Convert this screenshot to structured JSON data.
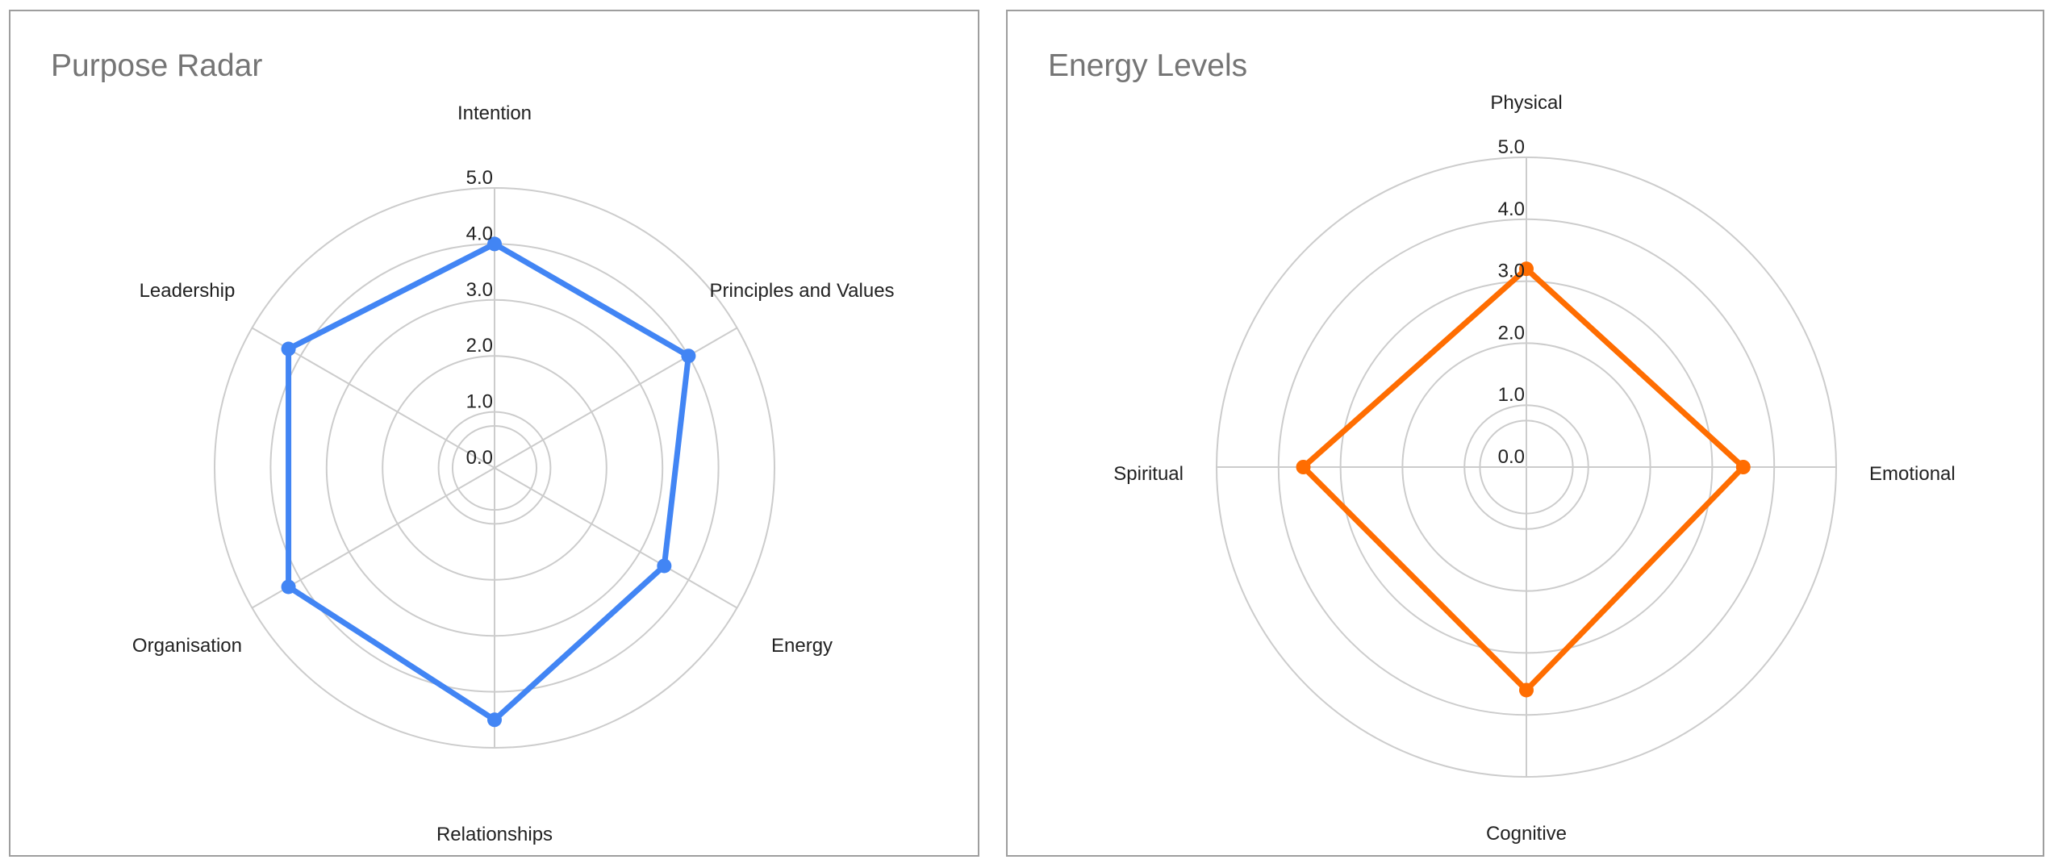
{
  "chart_data": [
    {
      "type": "radar",
      "title": "Purpose Radar",
      "categories": [
        "Intention",
        "Principles and Values",
        "Energy",
        "Relationships",
        "Organisation",
        "Leadership"
      ],
      "series": [
        {
          "values": [
            4.0,
            4.0,
            3.5,
            4.5,
            4.25,
            4.25
          ],
          "color": "#4285f4"
        }
      ],
      "rlim": [
        0,
        5
      ],
      "ticks": [
        "0.0",
        "1.0",
        "2.0",
        "3.0",
        "4.0",
        "5.0"
      ],
      "grid": true,
      "legend": "none"
    },
    {
      "type": "radar",
      "title": "Energy Levels",
      "categories": [
        "Physical",
        "Emotional",
        "Cognitive",
        "Spiritual"
      ],
      "series": [
        {
          "values": [
            3.2,
            3.5,
            3.6,
            3.6
          ],
          "color": "#ff6d01"
        }
      ],
      "rlim": [
        0,
        5
      ],
      "ticks": [
        "0.0",
        "1.0",
        "2.0",
        "3.0",
        "4.0",
        "5.0"
      ],
      "grid": true,
      "legend": "none"
    }
  ]
}
